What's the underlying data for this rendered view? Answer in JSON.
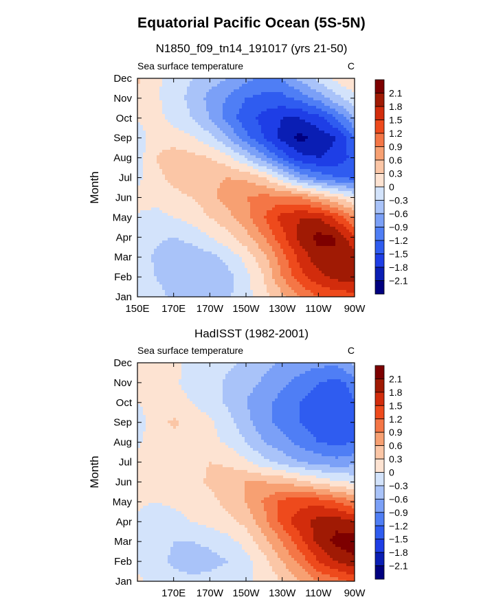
{
  "figure_title": "Equatorial Pacific Ocean (5S-5N)",
  "colors": {
    "levels": [
      -2.1,
      -1.8,
      -1.5,
      -1.2,
      -0.9,
      -0.6,
      -0.3,
      0,
      0.3,
      0.6,
      0.9,
      1.2,
      1.5,
      1.8,
      2.1
    ],
    "palette": [
      "#00007f",
      "#0a1eb4",
      "#1e3ee6",
      "#2f5cf0",
      "#4f7ef5",
      "#7ba0f7",
      "#a9c3f9",
      "#d3e3fb",
      "#fde3d2",
      "#fbc6a6",
      "#f7a072",
      "#f47646",
      "#ee4a1c",
      "#d22c0c",
      "#a01a04",
      "#7d0000"
    ]
  },
  "chart_data": [
    {
      "type": "heatmap",
      "title": "N1850_f09_tn14_191017 (yrs 21-50)",
      "variable": "Sea surface temperature",
      "units": "C",
      "ylabel": "Month",
      "x_ticks": [
        "150E",
        "170E",
        "170W",
        "150W",
        "130W",
        "110W",
        "90W"
      ],
      "y_ticks": [
        "Jan",
        "Feb",
        "Mar",
        "Apr",
        "May",
        "Jun",
        "Jul",
        "Aug",
        "Sep",
        "Oct",
        "Nov",
        "Dec"
      ],
      "colorbar_labels": [
        "2.1",
        "1.8",
        "1.5",
        "1.2",
        "0.9",
        "0.6",
        "0.3",
        "0",
        "−0.3",
        "−0.6",
        "−0.9",
        "−1.2",
        "−1.5",
        "−1.8",
        "−2.1"
      ],
      "x_deg_east": [
        150,
        160,
        170,
        180,
        190,
        200,
        210,
        220,
        230,
        240,
        250,
        260,
        270
      ],
      "values": [
        [
          -0.1,
          -0.2,
          -0.35,
          -0.5,
          -0.5,
          -0.35,
          -0.1,
          0.2,
          0.5,
          0.9,
          1.2,
          1.3,
          1.4
        ],
        [
          -0.1,
          -0.3,
          -0.45,
          -0.55,
          -0.55,
          -0.4,
          -0.1,
          0.3,
          0.9,
          1.4,
          1.7,
          1.9,
          1.9
        ],
        [
          -0.1,
          -0.35,
          -0.5,
          -0.5,
          -0.4,
          -0.2,
          0.1,
          0.5,
          1.1,
          1.6,
          2.0,
          2.1,
          2.0
        ],
        [
          -0.1,
          -0.25,
          -0.3,
          -0.2,
          0.0,
          0.2,
          0.5,
          0.9,
          1.4,
          1.9,
          2.2,
          2.1,
          1.5
        ],
        [
          -0.05,
          -0.1,
          0.0,
          0.1,
          0.3,
          0.5,
          0.8,
          1.2,
          1.6,
          1.8,
          1.8,
          1.4,
          0.9
        ],
        [
          0.15,
          0.1,
          0.2,
          0.3,
          0.5,
          0.75,
          0.9,
          1.0,
          1.0,
          0.9,
          0.6,
          0.3,
          0.0
        ],
        [
          -0.1,
          0.2,
          0.4,
          0.5,
          0.55,
          0.6,
          0.55,
          0.3,
          -0.2,
          -0.7,
          -1.0,
          -1.2,
          -1.3
        ],
        [
          -0.15,
          0.3,
          0.45,
          0.4,
          0.3,
          0.1,
          -0.3,
          -0.8,
          -1.3,
          -1.7,
          -1.8,
          -1.7,
          -1.4
        ],
        [
          -0.2,
          0.2,
          0.15,
          0.05,
          -0.2,
          -0.6,
          -1.1,
          -1.5,
          -1.9,
          -2.2,
          -2.0,
          -1.8,
          -1.2
        ],
        [
          0.05,
          0.1,
          -0.1,
          -0.3,
          -0.6,
          -1.0,
          -1.4,
          -1.6,
          -1.8,
          -1.8,
          -1.6,
          -1.2,
          -0.6
        ],
        [
          0.25,
          0.05,
          -0.15,
          -0.4,
          -0.7,
          -0.95,
          -1.2,
          -1.3,
          -1.3,
          -1.1,
          -0.8,
          -0.4,
          -0.1
        ],
        [
          0.35,
          0.05,
          -0.1,
          -0.3,
          -0.45,
          -0.6,
          -0.8,
          -1.0,
          -0.9,
          -0.5,
          -0.2,
          0.1,
          0.3
        ]
      ]
    },
    {
      "type": "heatmap",
      "title": "HadISST (1982-2001)",
      "variable": "Sea surface temperature",
      "units": "C",
      "ylabel": "Month",
      "x_ticks": [
        "170E",
        "170W",
        "150W",
        "130W",
        "110W",
        "90W"
      ],
      "y_ticks": [
        "Jan",
        "Feb",
        "Mar",
        "Apr",
        "May",
        "Jun",
        "Jul",
        "Aug",
        "Sep",
        "Oct",
        "Nov",
        "Dec"
      ],
      "colorbar_labels": [
        "2.1",
        "1.8",
        "1.5",
        "1.2",
        "0.9",
        "0.6",
        "0.3",
        "0",
        "−0.3",
        "−0.6",
        "−0.9",
        "−1.2",
        "−1.5",
        "−1.8",
        "−2.1"
      ],
      "x_deg_east": [
        150,
        160,
        170,
        180,
        190,
        200,
        210,
        220,
        230,
        240,
        250,
        260,
        270
      ],
      "values": [
        [
          0.05,
          -0.1,
          -0.2,
          -0.25,
          -0.2,
          -0.15,
          -0.05,
          0.1,
          0.3,
          0.6,
          0.9,
          1.1,
          1.3
        ],
        [
          -0.05,
          -0.2,
          -0.35,
          -0.4,
          -0.4,
          -0.3,
          -0.1,
          0.2,
          0.6,
          1.0,
          1.5,
          1.8,
          2.0
        ],
        [
          -0.05,
          -0.2,
          -0.3,
          -0.3,
          -0.25,
          -0.1,
          0.1,
          0.5,
          0.9,
          1.4,
          1.9,
          2.2,
          2.3
        ],
        [
          -0.05,
          -0.15,
          -0.1,
          0.0,
          0.1,
          0.2,
          0.4,
          0.8,
          1.3,
          1.7,
          1.9,
          2.0,
          1.8
        ],
        [
          0.05,
          0.0,
          0.05,
          0.1,
          0.2,
          0.4,
          0.6,
          0.95,
          1.3,
          1.4,
          1.4,
          1.2,
          0.9
        ],
        [
          0.2,
          0.2,
          0.15,
          0.2,
          0.35,
          0.5,
          0.6,
          0.6,
          0.55,
          0.4,
          0.2,
          0.05,
          -0.05
        ],
        [
          0.1,
          0.15,
          0.15,
          0.2,
          0.3,
          0.25,
          0.05,
          -0.2,
          -0.4,
          -0.6,
          -0.7,
          -0.8,
          -0.7
        ],
        [
          -0.05,
          0.15,
          0.2,
          0.15,
          0.1,
          -0.05,
          -0.3,
          -0.6,
          -0.8,
          -1.0,
          -1.2,
          -1.3,
          -1.2
        ],
        [
          -0.15,
          0.2,
          0.35,
          0.2,
          0.05,
          -0.2,
          -0.5,
          -0.8,
          -1.0,
          -1.2,
          -1.4,
          -1.5,
          -1.3
        ],
        [
          0.0,
          0.1,
          0.1,
          0.0,
          -0.15,
          -0.35,
          -0.6,
          -0.8,
          -1.0,
          -1.2,
          -1.4,
          -1.4,
          -1.2
        ],
        [
          0.15,
          0.1,
          0.05,
          -0.1,
          -0.2,
          -0.35,
          -0.5,
          -0.65,
          -0.85,
          -1.0,
          -1.2,
          -1.3,
          -1.1
        ],
        [
          0.25,
          0.15,
          0.05,
          -0.05,
          -0.15,
          -0.25,
          -0.35,
          -0.5,
          -0.65,
          -0.75,
          -0.8,
          -0.85,
          -0.5
        ]
      ]
    }
  ]
}
